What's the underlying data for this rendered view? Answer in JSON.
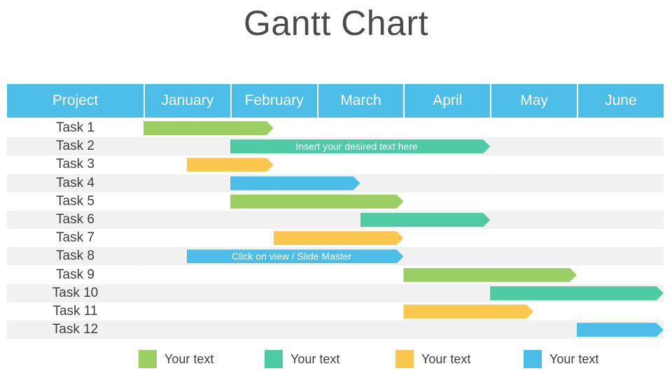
{
  "title": "Gantt Chart",
  "colors": {
    "header": "#4bbde6",
    "green": "#9ccf63",
    "teal": "#4ecba5",
    "yellow": "#fbc74f",
    "blue": "#4bbde6"
  },
  "header": {
    "project_label": "Project",
    "months": [
      "January",
      "February",
      "March",
      "April",
      "May",
      "June"
    ]
  },
  "tasks": [
    {
      "label": "Task 1",
      "start": 0,
      "end": 1.5,
      "color": "green",
      "text": ""
    },
    {
      "label": "Task 2",
      "start": 1,
      "end": 4,
      "color": "teal",
      "text": "Insert your desired text here"
    },
    {
      "label": "Task 3",
      "start": 0.5,
      "end": 1.5,
      "color": "yellow",
      "text": ""
    },
    {
      "label": "Task 4",
      "start": 1,
      "end": 2.5,
      "color": "blue",
      "text": ""
    },
    {
      "label": "Task 5",
      "start": 1,
      "end": 3,
      "color": "green",
      "text": ""
    },
    {
      "label": "Task 6",
      "start": 2.5,
      "end": 4,
      "color": "teal",
      "text": ""
    },
    {
      "label": "Task 7",
      "start": 1.5,
      "end": 3,
      "color": "yellow",
      "text": ""
    },
    {
      "label": "Task 8",
      "start": 0.5,
      "end": 3,
      "color": "blue",
      "text": "Click on view / Slide Master"
    },
    {
      "label": "Task 9",
      "start": 3,
      "end": 5,
      "color": "green",
      "text": ""
    },
    {
      "label": "Task 10",
      "start": 4,
      "end": 6,
      "color": "teal",
      "text": ""
    },
    {
      "label": "Task 11",
      "start": 3,
      "end": 4.5,
      "color": "yellow",
      "text": ""
    },
    {
      "label": "Task 12",
      "start": 5,
      "end": 6,
      "color": "blue",
      "text": ""
    }
  ],
  "legend": [
    {
      "label": "Your text",
      "color": "green"
    },
    {
      "label": "Your text",
      "color": "teal"
    },
    {
      "label": "Your text",
      "color": "yellow"
    },
    {
      "label": "Your text",
      "color": "blue"
    }
  ]
}
